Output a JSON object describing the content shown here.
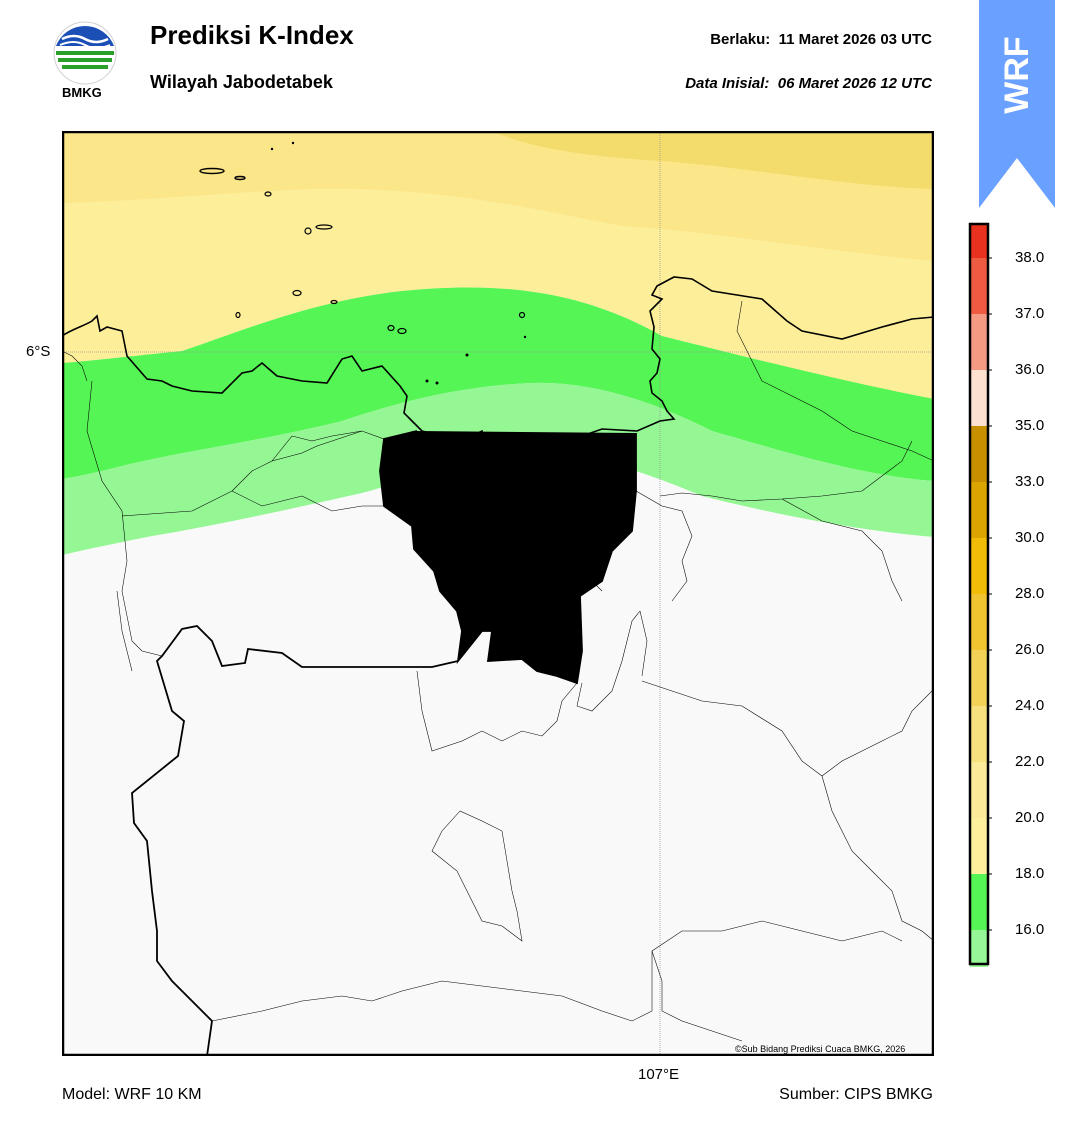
{
  "header": {
    "title": "Prediksi K-Index",
    "region": "Wilayah Jabodetabek",
    "valid_label": "Berlaku:",
    "valid_time": "11 Maret 2026 03 UTC",
    "init_label": "Data Inisial:",
    "init_time": "06 Maret 2026 12 UTC",
    "logo_text": "BMKG"
  },
  "map": {
    "lat_label": "6°S",
    "lon_label": "107°E",
    "credit": "©Sub Bidang Prediksi Cuaca BMKG, 2026",
    "land_color": "#f8f8f8",
    "border_color": "#000000"
  },
  "model_badge": {
    "text": "WRF",
    "color": "#6aa0ff"
  },
  "colorbar": {
    "labels": [
      "38.0",
      "37.0",
      "36.0",
      "35.0",
      "33.0",
      "30.0",
      "28.0",
      "26.0",
      "24.0",
      "22.0",
      "20.0",
      "18.0",
      "16.0"
    ],
    "colors": [
      "#e8311f",
      "#ef5a42",
      "#f59a82",
      "#fde0d0",
      "#c89000",
      "#dca400",
      "#f0bc08",
      "#f0c431",
      "#f3d157",
      "#f7e07e",
      "#fbeb98",
      "#fdf09c",
      "#55f555",
      "#95f795",
      "#ffffff"
    ],
    "contour_colors": {
      "band_high": "#f2d96a",
      "band_mid": "#f9e38a",
      "band_low": "#fdee9a",
      "green_dark": "#55f555",
      "green_light": "#94f794"
    }
  },
  "footer": {
    "model": "Model: WRF 10 KM",
    "source": "Sumber: CIPS BMKG"
  }
}
